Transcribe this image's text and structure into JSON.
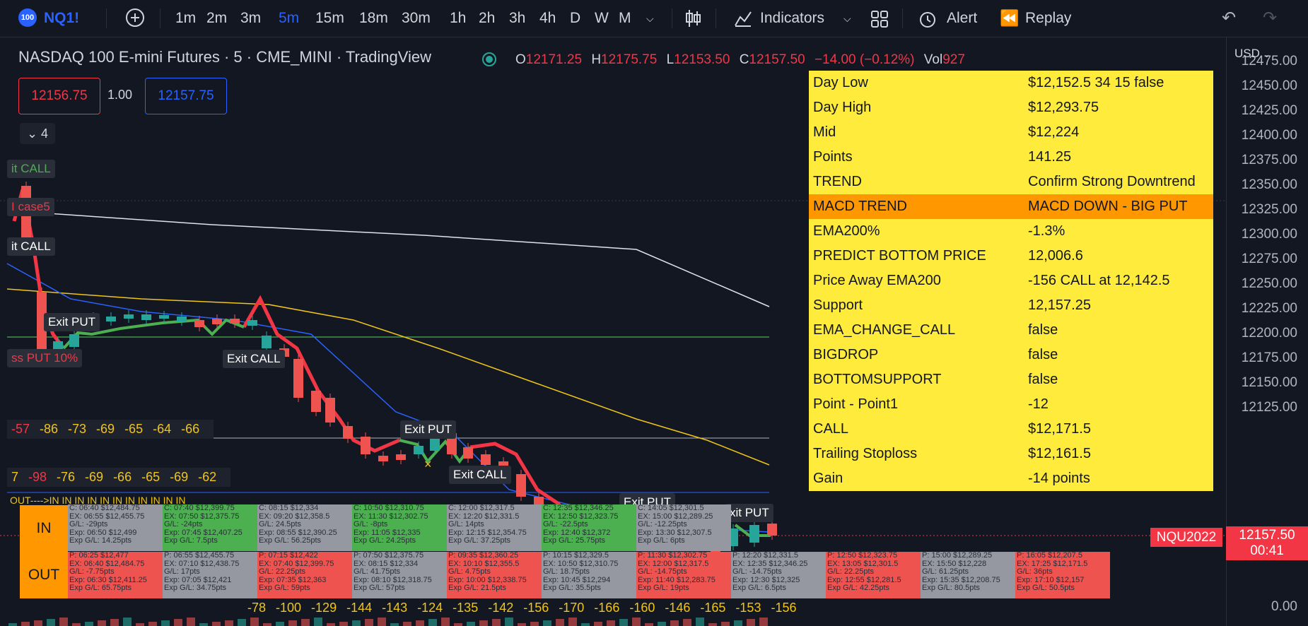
{
  "toolbar": {
    "badge": "100",
    "symbol": "NQ1!",
    "intervals": [
      "1m",
      "2m",
      "3m",
      "5m",
      "15m",
      "18m",
      "30m",
      "1h",
      "2h",
      "3h",
      "4h",
      "D",
      "W",
      "M"
    ],
    "active_interval": "5m",
    "indicators_label": "Indicators",
    "alert_label": "Alert",
    "replay_label": "Replay"
  },
  "legend": {
    "title": "NASDAQ 100 E-mini Futures · 5 · CME_MINI · TradingView",
    "o_label": "O",
    "o_value": "12171.25",
    "h_label": "H",
    "h_value": "12175.75",
    "l_label": "L",
    "l_value": "12153.50",
    "c_label": "C",
    "c_value": "12157.50",
    "change": "−14.00 (−0.12%)",
    "vol_label": "Vol",
    "vol_value": "927"
  },
  "order": {
    "sell_price": "12156.75",
    "qty": "1.00",
    "buy_price": "12157.75",
    "collapse_count": "4"
  },
  "currency": "USD",
  "info_table": [
    {
      "k": "Day Low",
      "v": "$12,152.5 34 15 false"
    },
    {
      "k": "Day High",
      "v": "$12,293.75"
    },
    {
      "k": "Mid",
      "v": "$12,224"
    },
    {
      "k": "Points",
      "v": "141.25"
    },
    {
      "k": "TREND",
      "v": "Confirm Strong Downtrend"
    },
    {
      "k": "MACD TREND",
      "v": "MACD DOWN - BIG PUT",
      "highlight": true
    },
    {
      "k": "EMA200%",
      "v": "-1.3%"
    },
    {
      "k": "PREDICT BOTTOM PRICE",
      "v": "12,006.6"
    },
    {
      "k": "Price Away EMA200",
      "v": "-156 CALL at 12,142.5"
    },
    {
      "k": "Support",
      "v": "12,157.25"
    },
    {
      "k": "EMA_CHANGE_CALL",
      "v": "false"
    },
    {
      "k": "BIGDROP",
      "v": "false"
    },
    {
      "k": "BOTTOMSUPPORT",
      "v": "false"
    },
    {
      "k": "Point - Point1",
      "v": "-12"
    },
    {
      "k": "CALL",
      "v": "$12,171.5"
    },
    {
      "k": "Trailing Stoploss",
      "v": "$12,161.5"
    },
    {
      "k": "Gain",
      "v": "-14 points"
    }
  ],
  "axis_ticks": [
    "12475.00",
    "12450.00",
    "12425.00",
    "12400.00",
    "12375.00",
    "12350.00",
    "12325.00",
    "12300.00",
    "12275.00",
    "12250.00",
    "12225.00",
    "12200.00",
    "12175.00",
    "12150.00",
    "12125.00",
    "0.00"
  ],
  "price_tag": {
    "symbol": "NQU2022",
    "price": "12157.50",
    "timer": "00:41"
  },
  "chart_labels": {
    "exit_call_1": "it CALL",
    "case5": "I case5",
    "exit_call_2": "it CALL",
    "exit_put_1": "Exit PUT",
    "loss_put": "ss PUT 10%",
    "exit_call_3": "Exit CALL",
    "exit_put_2": "Exit PUT",
    "exit_call_4": "Exit CALL",
    "exit_put_3": "Exit PUT",
    "exit_put_4": "xit PUT",
    "out_marker": "OUT---->IN IN IN IN IN IN IN IN IN IN IN"
  },
  "num_row_1": [
    "-57",
    "-86",
    "-73",
    "-69",
    "-65",
    "-64",
    "-66"
  ],
  "num_row_2": [
    "7",
    "-98",
    "-76",
    "-69",
    "-66",
    "-65",
    "-69",
    "-62"
  ],
  "num_row_bottom": [
    "-78",
    "-100",
    "-129",
    "-144",
    "-143",
    "-124",
    "-135",
    "-142",
    "-156",
    "-170",
    "-166",
    "-160",
    "-146",
    "-165",
    "-153",
    "-156"
  ],
  "io_labels": {
    "in": "IN",
    "out": "OUT"
  },
  "in_cells": [
    {
      "color": "gray",
      "lines": [
        "C: 06:40 $12,484.75",
        "EX: 06:55 $12,455.75",
        "G/L: -29pts",
        "Exp: 06:50 $12,499",
        "Exp G/L: 14.25pts"
      ]
    },
    {
      "color": "green",
      "lines": [
        "C: 07:40 $12,399.75",
        "EX: 07:50 $12,375.75",
        "G/L: -24pts",
        "Exp: 07:45 $12,407.25",
        "Exp G/L: 7.5pts"
      ]
    },
    {
      "color": "gray",
      "lines": [
        "C: 08:15 $12,334",
        "EX: 09:20 $12,358.5",
        "G/L: 24.5pts",
        "Exp: 08:55 $12,390.25",
        "Exp G/L: 56.25pts"
      ]
    },
    {
      "color": "green",
      "lines": [
        "C: 10:50 $12,310.75",
        "EX: 11:30 $12,302.75",
        "G/L: -8pts",
        "Exp: 11:05 $12,335",
        "Exp G/L: 24.25pts"
      ]
    },
    {
      "color": "gray",
      "lines": [
        "C: 12:00 $12,317.5",
        "EX: 12:20 $12,331.5",
        "G/L: 14pts",
        "Exp: 12:15 $12,354.75",
        "Exp G/L: 37.25pts"
      ]
    },
    {
      "color": "green",
      "lines": [
        "C: 12:35 $12,346.25",
        "EX: 12:50 $12,323.75",
        "G/L: -22.5pts",
        "Exp: 12:40 $12,372",
        "Exp G/L: 25.75pts"
      ]
    },
    {
      "color": "gray",
      "lines": [
        "C: 14:05 $12,301.5",
        "EX: 15:00 $12,289.25",
        "G/L: -12.25pts",
        "Exp: 13:30 $12,307.5",
        "Exp G/L: 6pts"
      ]
    }
  ],
  "out_cells": [
    {
      "color": "red",
      "lines": [
        "P: 06:25 $12,477",
        "EX: 06:40 $12,484.75",
        "G/L: -7.75pts",
        "Exp: 06:30 $12,411.25",
        "Exp G/L: 65.75pts"
      ]
    },
    {
      "color": "gray",
      "lines": [
        "P: 06:55 $12,455.75",
        "EX: 07:10 $12,438.75",
        "G/L: 17pts",
        "Exp: 07:05 $12,421",
        "Exp G/L: 34.75pts"
      ]
    },
    {
      "color": "red",
      "lines": [
        "P: 07:15 $12,422",
        "EX: 07:40 $12,399.75",
        "G/L: 22.25pts",
        "Exp: 07:35 $12,363",
        "Exp G/L: 59pts"
      ]
    },
    {
      "color": "gray",
      "lines": [
        "P: 07:50 $12,375.75",
        "EX: 08:15 $12,334",
        "G/L: 41.75pts",
        "Exp: 08:10 $12,318.75",
        "Exp G/L: 57pts"
      ]
    },
    {
      "color": "red",
      "lines": [
        "P: 09:35 $12,360.25",
        "EX: 10:10 $12,355.5",
        "G/L: 4.75pts",
        "Exp: 10:00 $12,338.75",
        "Exp G/L: 21.5pts"
      ]
    },
    {
      "color": "gray",
      "lines": [
        "P: 10:15 $12,329.5",
        "EX: 10:50 $12,310.75",
        "G/L: 18.75pts",
        "Exp: 10:45 $12,294",
        "Exp G/L: 35.5pts"
      ]
    },
    {
      "color": "red",
      "lines": [
        "P: 11:30 $12,302.75",
        "EX: 12:00 $12,317.5",
        "G/L: -14.75pts",
        "Exp: 11:40 $12,283.75",
        "Exp G/L: 19pts"
      ]
    },
    {
      "color": "gray",
      "lines": [
        "P: 12:20 $12,331.5",
        "EX: 12:35 $12,346.25",
        "G/L: -14.75pts",
        "Exp: 12:30 $12,325",
        "Exp G/L: 6.5pts"
      ]
    },
    {
      "color": "red",
      "lines": [
        "P: 12:50 $12,323.75",
        "EX: 13:05 $12,301.5",
        "G/L: 22.25pts",
        "Exp: 12:55 $12,281.5",
        "Exp G/L: 42.25pts"
      ]
    },
    {
      "color": "gray",
      "lines": [
        "P: 15:00 $12,289.25",
        "EX: 15:50 $12,228",
        "G/L: 61.25pts",
        "Exp: 15:35 $12,208.75",
        "Exp G/L: 80.5pts"
      ]
    },
    {
      "color": "red",
      "lines": [
        "P: 16:05 $12,207.5",
        "EX: 17:25 $12,171.5",
        "G/L: 36pts",
        "Exp: 17:10 $12,157",
        "Exp G/L: 50.5pts"
      ]
    }
  ],
  "colors": {
    "up": "#26a69a",
    "down": "#ef5350",
    "accent": "#2962ff",
    "table_bg": "#ffeb3b",
    "table_highlight": "#ff9800"
  }
}
